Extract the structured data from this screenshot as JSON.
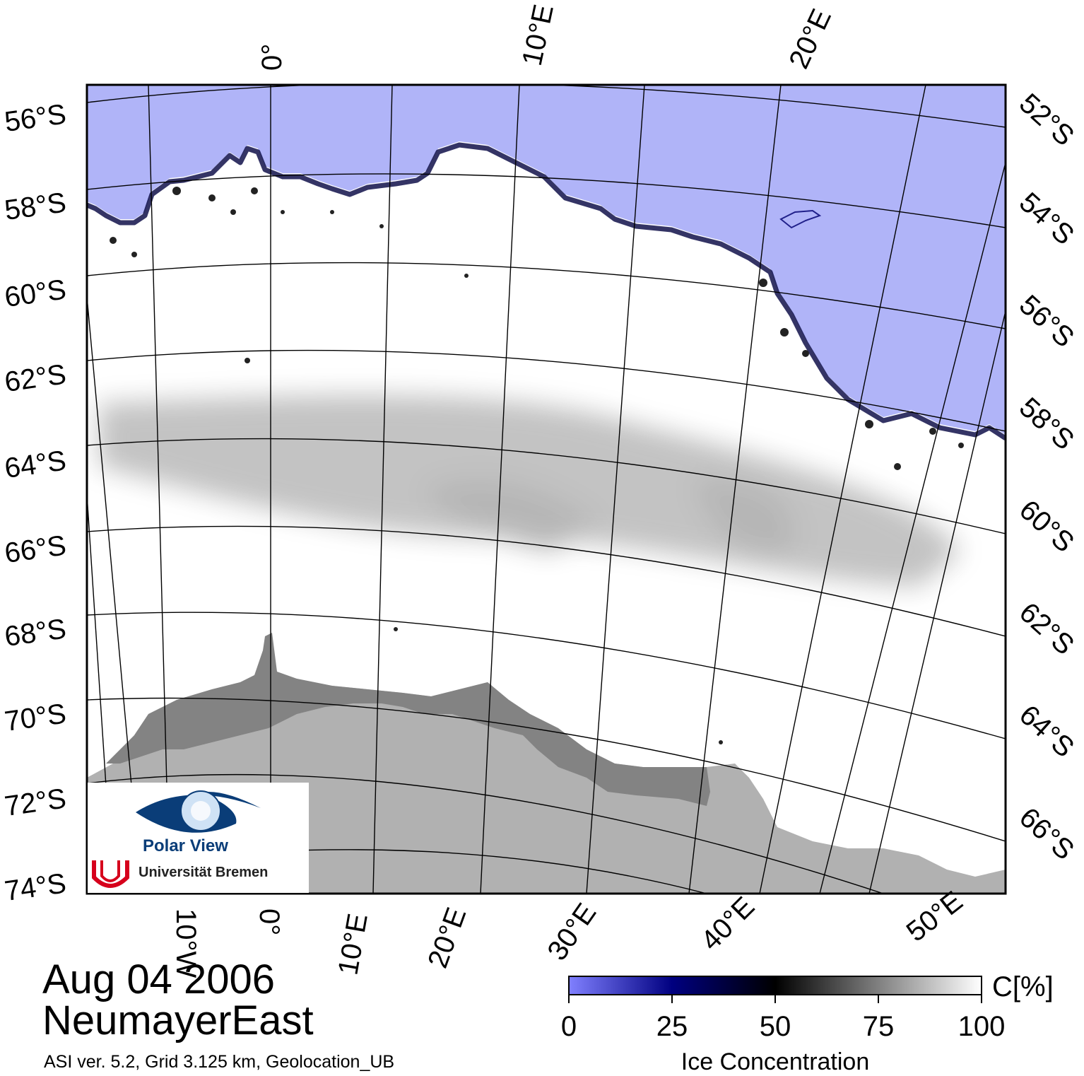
{
  "map": {
    "date": "Aug 04 2006",
    "region": "NeumayerEast",
    "credits": "ASI ver. 5.2,  Grid 3.125 km, Geolocation_UB",
    "left_lat_labels": [
      "56°S",
      "58°S",
      "60°S",
      "62°S",
      "64°S",
      "66°S",
      "68°S",
      "70°S",
      "72°S",
      "74°S"
    ],
    "right_lat_labels": [
      "52°S",
      "54°S",
      "56°S",
      "58°S",
      "60°S",
      "62°S",
      "64°S",
      "66°S"
    ],
    "top_lon_labels": [
      "0°",
      "10°E",
      "20°E"
    ],
    "bottom_lon_labels": [
      "10°W",
      "0°",
      "10°E",
      "20°E",
      "30°E",
      "40°E",
      "50°E"
    ],
    "colors": {
      "open_water": "#b0b4f8",
      "sea_ice": "#ffffff",
      "land": "#b1b1b1",
      "ice_shelf": "#838383",
      "graticule": "#000000"
    }
  },
  "legend": {
    "title": "Ice Concentration",
    "unit": "C[%]",
    "ticks": [
      "0",
      "25",
      "50",
      "75",
      "100"
    ],
    "gradient_colors": [
      "#8080ff",
      "#000080",
      "#000000",
      "#808080",
      "#ffffff"
    ]
  },
  "logo": {
    "name": "Polar View",
    "institution": "Universität Bremen"
  }
}
